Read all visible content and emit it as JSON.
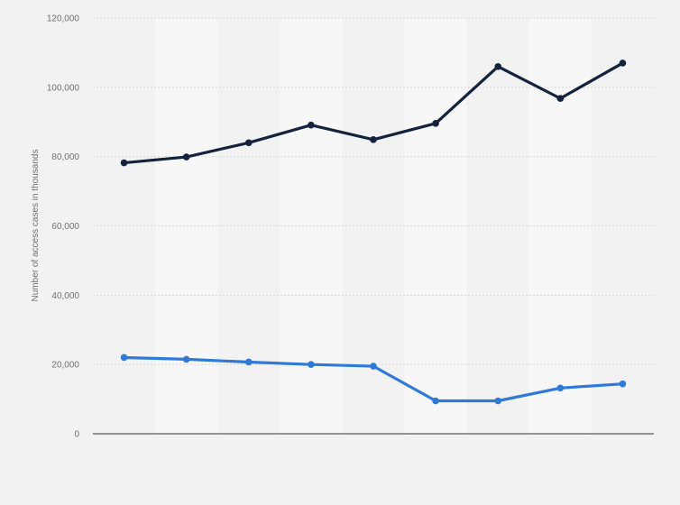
{
  "chart_data": {
    "type": "line",
    "ylabel": "Number of access cases in thousands",
    "xlabel": "",
    "title": "",
    "ylim": [
      0,
      120000
    ],
    "y_ticks": [
      0,
      20000,
      40000,
      60000,
      80000,
      100000,
      120000
    ],
    "y_tick_labels": [
      "0",
      "20,000",
      "40,000",
      "60,000",
      "80,000",
      "100,000",
      "120,000"
    ],
    "categories": [
      "",
      "",
      "",
      "",
      "",
      "",
      "",
      "",
      ""
    ],
    "grid": true,
    "legend": "none",
    "series": [
      {
        "color": "#13233d",
        "values": [
          78200,
          79900,
          84000,
          89100,
          84900,
          89600,
          106000,
          96800,
          107000
        ]
      },
      {
        "color": "#2f7ad8",
        "values": [
          22000,
          21500,
          20700,
          20000,
          19500,
          9500,
          9500,
          13200,
          14400
        ]
      }
    ]
  },
  "colors": {
    "background": "#f2f2f2",
    "band_light": "#f7f7f7",
    "band_dark": "#f2f2f2",
    "gridline": "#d9d9d9",
    "axis": "#333333"
  }
}
